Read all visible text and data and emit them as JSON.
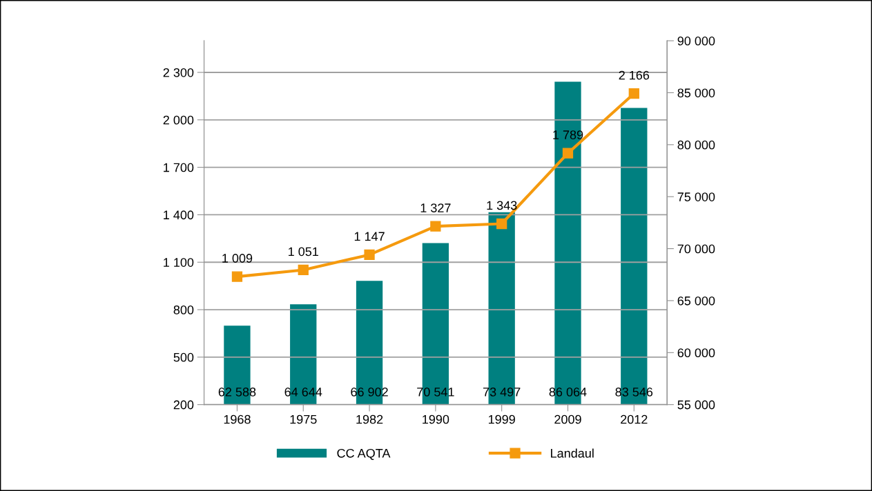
{
  "chart_data": {
    "type": "bar",
    "categories": [
      "1968",
      "1975",
      "1982",
      "1990",
      "1999",
      "2009",
      "2012"
    ],
    "series": [
      {
        "name": "CC AQTA",
        "axis": "y2",
        "color": "#008080",
        "values": [
          62588,
          64644,
          66902,
          70541,
          73497,
          86064,
          83546
        ],
        "value_labels": [
          "62 588",
          "64 644",
          "66 902",
          "70 541",
          "73 497",
          "86 064",
          "83 546"
        ]
      },
      {
        "name": "Landaul",
        "type": "line",
        "color": "#f59a0e",
        "marker": "square",
        "values": [
          1009,
          1051,
          1147,
          1327,
          1343,
          1789,
          2166
        ],
        "value_labels": [
          "1 009",
          "1 051",
          "1 147",
          "1 327",
          "1 343",
          "1 789",
          "2 166"
        ]
      }
    ],
    "ylim": [
      200,
      2500
    ],
    "yticks": [
      {
        "value": 200,
        "label": "200"
      },
      {
        "value": 500,
        "label": "500"
      },
      {
        "value": 800,
        "label": "800"
      },
      {
        "value": 1100,
        "label": "1 100"
      },
      {
        "value": 1400,
        "label": "1 400"
      },
      {
        "value": 1700,
        "label": "1 700"
      },
      {
        "value": 2000,
        "label": "2 000"
      },
      {
        "value": 2300,
        "label": "2 300"
      }
    ],
    "y2lim": [
      55000,
      90000
    ],
    "y2ticks": [
      {
        "value": 55000,
        "label": "55 000"
      },
      {
        "value": 60000,
        "label": "60 000"
      },
      {
        "value": 65000,
        "label": "65 000"
      },
      {
        "value": 70000,
        "label": "70 000"
      },
      {
        "value": 75000,
        "label": "75 000"
      },
      {
        "value": 80000,
        "label": "80 000"
      },
      {
        "value": 85000,
        "label": "85 000"
      },
      {
        "value": 90000,
        "label": "90 000"
      }
    ],
    "grid": "y",
    "legend": "bottom"
  }
}
